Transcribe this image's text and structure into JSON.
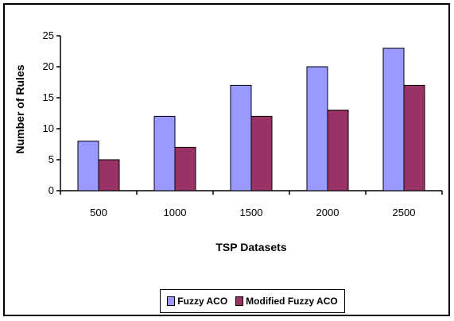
{
  "chart_data": {
    "type": "bar",
    "title": "",
    "xlabel": "TSP Datasets",
    "ylabel": "Number of Rules",
    "categories": [
      "500",
      "1000",
      "1500",
      "2000",
      "2500"
    ],
    "ylim": [
      0,
      25
    ],
    "yticks": [
      "0",
      "5",
      "10",
      "15",
      "20",
      "25"
    ],
    "grid": false,
    "legend_position": "bottom",
    "series": [
      {
        "name": "Fuzzy ACO",
        "values": [
          8,
          12,
          17,
          20,
          23
        ],
        "color": "#9999ff"
      },
      {
        "name": "Modified Fuzzy ACO",
        "values": [
          5,
          7,
          12,
          13,
          17
        ],
        "color": "#993366"
      }
    ]
  }
}
